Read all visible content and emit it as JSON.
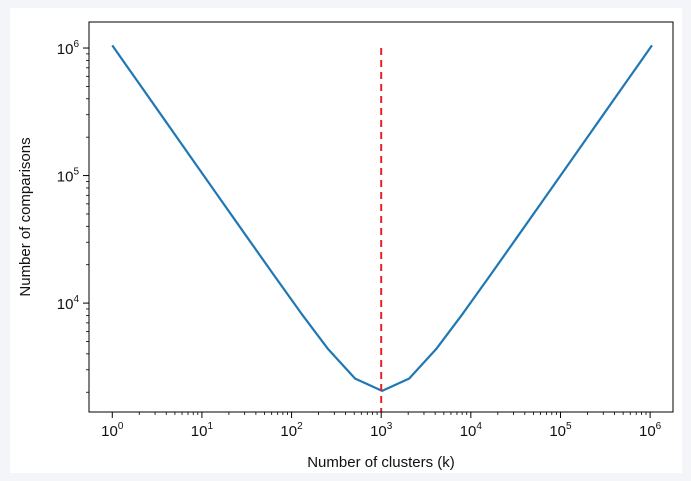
{
  "chart_data": {
    "type": "line",
    "title": "",
    "xlabel": "Number of clusters (k)",
    "ylabel": "Number of comparisons",
    "xscale": "log",
    "yscale": "log",
    "xlim": [
      0.55,
      1800000
    ],
    "ylim": [
      1400,
      1600000
    ],
    "grid": false,
    "x_ticks": [
      {
        "value": 1,
        "base": "10",
        "exp": "0"
      },
      {
        "value": 10,
        "base": "10",
        "exp": "1"
      },
      {
        "value": 100,
        "base": "10",
        "exp": "2"
      },
      {
        "value": 1000,
        "base": "10",
        "exp": "3"
      },
      {
        "value": 10000,
        "base": "10",
        "exp": "4"
      },
      {
        "value": 100000,
        "base": "10",
        "exp": "5"
      },
      {
        "value": 1000000,
        "base": "10",
        "exp": "6"
      }
    ],
    "y_ticks": [
      {
        "value": 10000,
        "base": "10",
        "exp": "4"
      },
      {
        "value": 100000,
        "base": "10",
        "exp": "5"
      },
      {
        "value": 1000000,
        "base": "10",
        "exp": "6"
      }
    ],
    "series": [
      {
        "color": "#1f77b4",
        "x": [
          1,
          2,
          4,
          8,
          16,
          32,
          64,
          128,
          256,
          512,
          1024,
          2048,
          4096,
          8192,
          16384,
          32768,
          65536,
          131072,
          262144,
          524288,
          1048576
        ],
        "y": [
          1048577,
          524290,
          262148,
          131080,
          65552,
          32800,
          16448,
          8320,
          4352,
          2560,
          2048,
          2560,
          4352,
          8320,
          16448,
          32800,
          65552,
          131080,
          262148,
          524290,
          1048577
        ]
      }
    ],
    "vline": {
      "x": 1000,
      "color": "#e8202a",
      "style": "dashed",
      "y_top": 1000000
    }
  }
}
